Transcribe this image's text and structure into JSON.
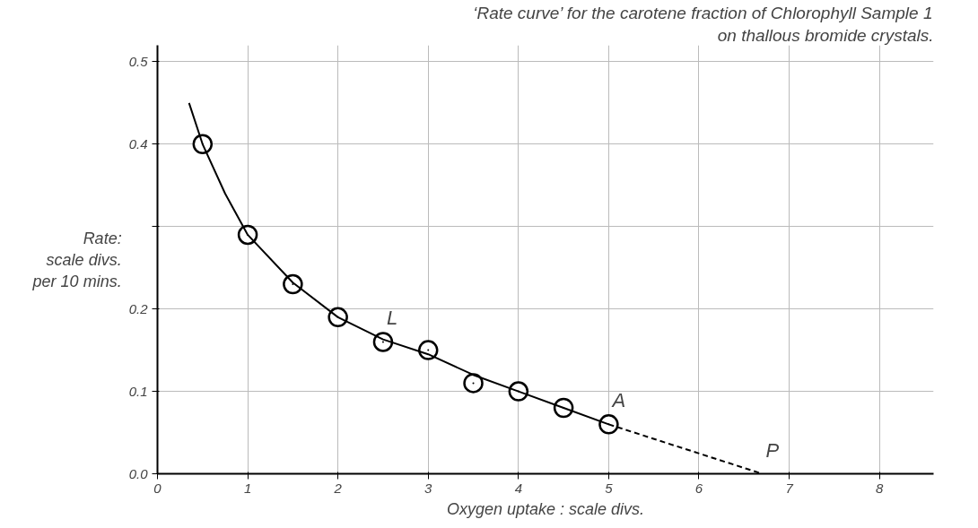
{
  "chart_data": {
    "type": "scatter",
    "title": "‘Rate curve’ for the carotene fraction of Chlorophyll Sample 1",
    "subtitle": "on thallous bromide crystals.",
    "xlabel": "Oxygen uptake : scale divs.",
    "ylabel": "Rate:\nscale divs.\nper 10 mins.",
    "x": [
      0.5,
      1.0,
      1.5,
      2.0,
      2.5,
      3.0,
      3.5,
      4.0,
      4.5,
      5.0
    ],
    "series": [
      {
        "color": "#000000",
        "marker": "circle",
        "values": [
          0.4,
          0.29,
          0.23,
          0.19,
          0.16,
          0.15,
          0.11,
          0.1,
          0.08,
          0.06
        ]
      },
      {
        "type": "line",
        "color": "#000000",
        "line_style": "solid",
        "x": [
          0.35,
          0.5,
          0.75,
          1.0,
          1.5,
          2.0,
          2.5,
          3.0,
          3.5,
          4.0,
          4.5,
          5.0
        ],
        "values": [
          0.45,
          0.4,
          0.34,
          0.29,
          0.232,
          0.19,
          0.163,
          0.145,
          0.12,
          0.1,
          0.08,
          0.06
        ]
      },
      {
        "type": "line",
        "color": "#000000",
        "line_style": "dashed",
        "x": [
          5.0,
          6.7
        ],
        "values": [
          0.06,
          0.0
        ]
      }
    ],
    "annotations": [
      {
        "text": "L",
        "x": 2.5,
        "y": 0.16
      },
      {
        "text": "A",
        "x": 5.0,
        "y": 0.06
      },
      {
        "text": "P",
        "x": 6.7,
        "y": 0.0
      }
    ],
    "xlim": [
      0,
      8.6
    ],
    "ylim": [
      0,
      0.52
    ],
    "xticks": [
      0,
      1,
      2,
      3,
      4,
      5,
      6,
      7,
      8
    ],
    "yticks": [
      {
        "value": 0.0,
        "label": "0.0"
      },
      {
        "value": 0.1,
        "label": "0.1"
      },
      {
        "value": 0.2,
        "label": "0.2"
      },
      {
        "value": 0.3,
        "label": null
      },
      {
        "value": 0.4,
        "label": "0.4"
      },
      {
        "value": 0.5,
        "label": "0.5"
      }
    ],
    "grid": true
  }
}
